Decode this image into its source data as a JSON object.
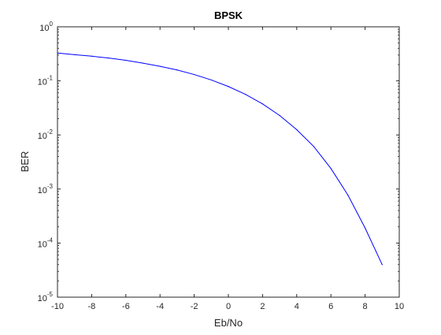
{
  "chart_data": {
    "type": "line",
    "title": "BPSK",
    "xlabel": "Eb/No",
    "ylabel": "BER",
    "xlim": [
      -10,
      10
    ],
    "ylim": [
      1e-05,
      1
    ],
    "yscale": "log",
    "grid": false,
    "box": true,
    "x_ticks": [
      -10,
      -8,
      -6,
      -4,
      -2,
      0,
      2,
      4,
      6,
      8,
      10
    ],
    "x_tick_labels": [
      "-10",
      "-8",
      "-6",
      "-4",
      "-2",
      "0",
      "2",
      "4",
      "6",
      "8",
      "10"
    ],
    "y_ticks": [
      {
        "value": 1e-05,
        "base": "10",
        "exp": "-5"
      },
      {
        "value": 0.0001,
        "base": "10",
        "exp": "-4"
      },
      {
        "value": 0.001,
        "base": "10",
        "exp": "-3"
      },
      {
        "value": 0.01,
        "base": "10",
        "exp": "-2"
      },
      {
        "value": 0.1,
        "base": "10",
        "exp": "-1"
      },
      {
        "value": 1,
        "base": "10",
        "exp": "0"
      }
    ],
    "series": [
      {
        "color": "#0000ff",
        "x": [
          -10,
          -9,
          -8,
          -7,
          -6,
          -5,
          -4,
          -3,
          -2,
          -1,
          0,
          1,
          2,
          3,
          4,
          5,
          6,
          7,
          8,
          9
        ],
        "y": [
          0.327,
          0.305,
          0.286,
          0.264,
          0.24,
          0.213,
          0.186,
          0.159,
          0.131,
          0.104,
          0.0786,
          0.0563,
          0.0375,
          0.0229,
          0.0125,
          0.0061,
          0.0024,
          0.00077,
          0.00019,
          4e-05
        ]
      }
    ]
  }
}
